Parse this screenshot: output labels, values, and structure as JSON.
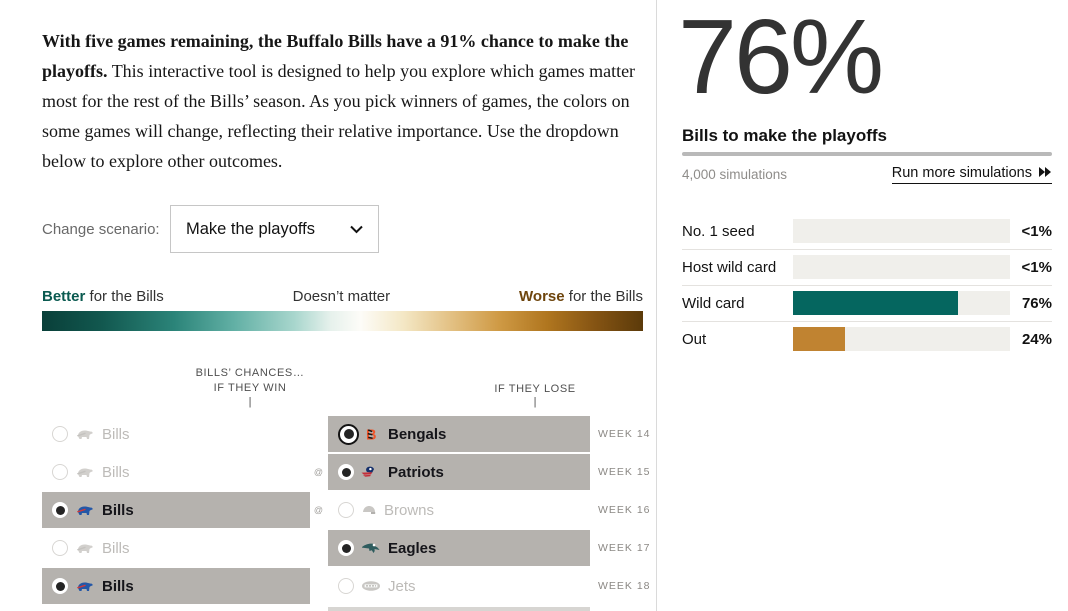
{
  "intro": {
    "bold": "With five games remaining, the Buffalo Bills have a 91% chance to make the playoffs.",
    "rest": " This interactive tool is designed to help you explore which games matter most for the rest of the Bills’ season. As you pick winners of games, the colors on some games will change, reflecting their relative importance. Use the dropdown below to explore other outcomes."
  },
  "scenario": {
    "label": "Change scenario:",
    "selected": "Make the playoffs"
  },
  "legend": {
    "better_bold": "Better",
    "better_rest": " for the Bills",
    "middle": "Doesn’t matter",
    "worse_bold": "Worse",
    "worse_rest": " for the Bills",
    "teal_end": "#093f39",
    "brown_end": "#5b3a0a"
  },
  "picker": {
    "header_line1": "BILLS’ CHANCES…",
    "header_line2": "IF THEY WIN",
    "header_lose": "IF THEY LOSE",
    "tick": "|",
    "at_symbol": "@",
    "selected_box_color": "#b5b2ae",
    "rows": [
      {
        "week": "WEEK 14",
        "at": false,
        "left": {
          "team": "Bills",
          "selected": false
        },
        "right": {
          "team": "Bengals",
          "selected": true,
          "ring": true
        }
      },
      {
        "week": "WEEK 15",
        "at": true,
        "left": {
          "team": "Bills",
          "selected": false
        },
        "right": {
          "team": "Patriots",
          "selected": true,
          "ring": false
        }
      },
      {
        "week": "WEEK 16",
        "at": true,
        "left": {
          "team": "Bills",
          "selected": true
        },
        "right": {
          "team": "Browns",
          "selected": false,
          "ring": false
        }
      },
      {
        "week": "WEEK 17",
        "at": false,
        "left": {
          "team": "Bills",
          "selected": false
        },
        "right": {
          "team": "Eagles",
          "selected": true,
          "ring": false
        }
      },
      {
        "week": "WEEK 18",
        "at": false,
        "left": {
          "team": "Bills",
          "selected": true
        },
        "right": {
          "team": "Jets",
          "selected": false,
          "ring": false
        }
      }
    ]
  },
  "summary": {
    "big_pct": "76%",
    "caption": "Bills to make the playoffs",
    "sims": "4,000 simulations",
    "run_more": "Run more simulations"
  },
  "chart_data": {
    "type": "bar",
    "orientation": "horizontal",
    "title": "Bills to make the playoffs",
    "headline_value": "76%",
    "subtitle": "4,000 simulations",
    "categories": [
      "No. 1 seed",
      "Host wild card",
      "Wild card",
      "Out"
    ],
    "values": [
      0,
      0,
      76,
      24
    ],
    "value_labels": [
      "<1%",
      "<1%",
      "76%",
      "24%"
    ],
    "bar_colors": [
      "#f0efeb",
      "#f0efeb",
      "#05665f",
      "#c08331"
    ],
    "track_color": "#f0efeb",
    "xlim": [
      0,
      100
    ],
    "grid": false,
    "legend_position": "none"
  }
}
